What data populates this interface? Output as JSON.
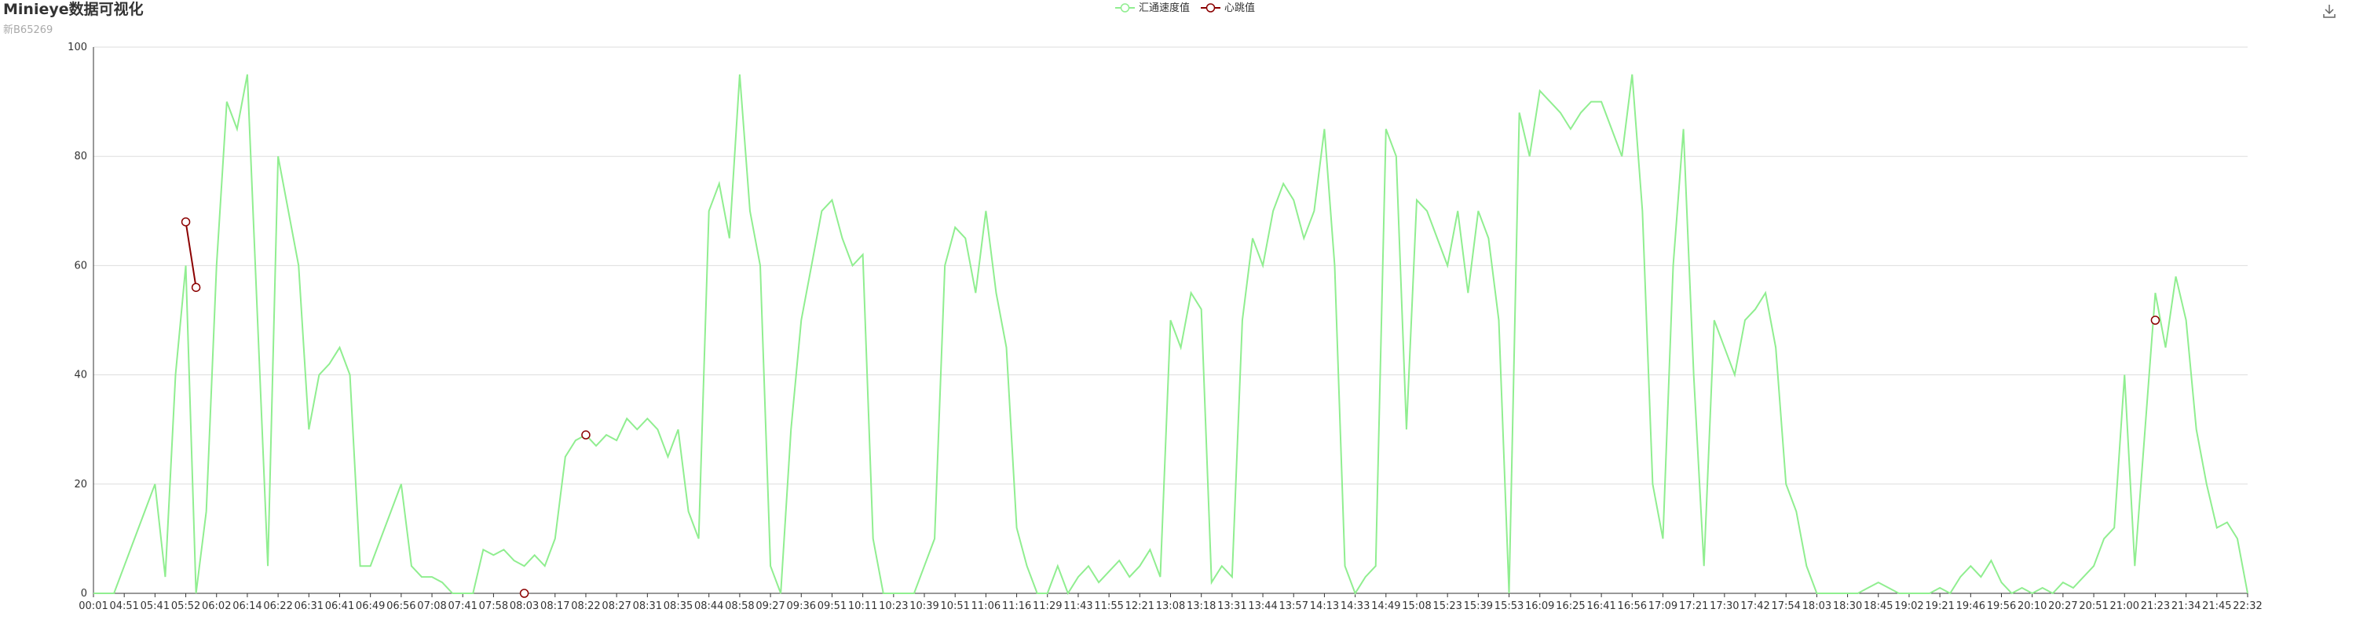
{
  "chart_data": {
    "type": "line",
    "title": "Minieye数据可视化",
    "subtitle": "新B65269",
    "categories": [
      "00:01",
      null,
      null,
      "04:51",
      null,
      null,
      "05:41",
      null,
      null,
      "05:52",
      null,
      null,
      "06:02",
      null,
      null,
      "06:14",
      null,
      null,
      "06:22",
      null,
      null,
      "06:31",
      null,
      null,
      "06:41",
      null,
      null,
      "06:49",
      null,
      null,
      "06:56",
      null,
      null,
      "07:08",
      null,
      null,
      "07:41",
      null,
      null,
      "07:58",
      null,
      null,
      "08:03",
      null,
      null,
      "08:17",
      null,
      null,
      "08:22",
      null,
      null,
      "08:27",
      null,
      null,
      "08:31",
      null,
      null,
      "08:35",
      null,
      null,
      "08:44",
      null,
      null,
      "08:58",
      null,
      null,
      "09:27",
      null,
      null,
      "09:36",
      null,
      null,
      "09:51",
      null,
      null,
      "10:11",
      null,
      null,
      "10:23",
      null,
      null,
      "10:39",
      null,
      null,
      "10:51",
      null,
      null,
      "11:06",
      null,
      null,
      "11:16",
      null,
      null,
      "11:29",
      null,
      null,
      "11:43",
      null,
      null,
      "11:55",
      null,
      null,
      "12:21",
      null,
      null,
      "13:08",
      null,
      null,
      "13:18",
      null,
      null,
      "13:31",
      null,
      null,
      "13:44",
      null,
      null,
      "13:57",
      null,
      null,
      "14:13",
      null,
      null,
      "14:33",
      null,
      null,
      "14:49",
      null,
      null,
      "15:08",
      null,
      null,
      "15:23",
      null,
      null,
      "15:39",
      null,
      null,
      "15:53",
      null,
      null,
      "16:09",
      null,
      null,
      "16:25",
      null,
      null,
      "16:41",
      null,
      null,
      "16:56",
      null,
      null,
      "17:09",
      null,
      null,
      "17:21",
      null,
      null,
      "17:30",
      null,
      null,
      "17:42",
      null,
      null,
      "17:54",
      null,
      null,
      "18:03",
      null,
      null,
      "18:30",
      null,
      null,
      "18:45",
      null,
      null,
      "19:02",
      null,
      null,
      "19:21",
      null,
      null,
      "19:46",
      null,
      null,
      "19:56",
      null,
      null,
      "20:10",
      null,
      null,
      "20:27",
      null,
      null,
      "20:51",
      null,
      null,
      "21:00",
      null,
      null,
      "21:23",
      null,
      null,
      "21:34",
      null,
      null,
      "21:45",
      null,
      null,
      "22:32"
    ],
    "series": [
      {
        "name": "汇通速度值",
        "color": "#90ee90",
        "values": [
          0,
          0,
          0,
          5,
          10,
          15,
          20,
          3,
          40,
          60,
          0,
          15,
          60,
          90,
          85,
          95,
          50,
          5,
          80,
          70,
          60,
          30,
          40,
          42,
          45,
          40,
          5,
          5,
          10,
          15,
          20,
          5,
          3,
          3,
          2,
          0,
          0,
          0,
          8,
          7,
          8,
          6,
          5,
          7,
          5,
          10,
          25,
          28,
          29,
          27,
          29,
          28,
          32,
          30,
          32,
          30,
          25,
          30,
          15,
          10,
          70,
          75,
          65,
          95,
          70,
          60,
          5,
          0,
          30,
          50,
          60,
          70,
          72,
          65,
          60,
          62,
          10,
          0,
          0,
          0,
          0,
          5,
          10,
          60,
          67,
          65,
          55,
          70,
          55,
          45,
          12,
          5,
          0,
          0,
          5,
          0,
          3,
          5,
          2,
          4,
          6,
          3,
          5,
          8,
          3,
          50,
          45,
          55,
          52,
          2,
          5,
          3,
          50,
          65,
          60,
          70,
          75,
          72,
          65,
          70,
          85,
          60,
          5,
          0,
          3,
          5,
          85,
          80,
          30,
          72,
          70,
          65,
          60,
          70,
          55,
          70,
          65,
          50,
          0,
          88,
          80,
          92,
          90,
          88,
          85,
          88,
          90,
          90,
          85,
          80,
          95,
          70,
          20,
          10,
          60,
          85,
          40,
          5,
          50,
          45,
          40,
          50,
          52,
          55,
          45,
          20,
          15,
          5,
          0,
          0,
          0,
          0,
          0,
          1,
          2,
          1,
          0,
          0,
          0,
          0,
          1,
          0,
          3,
          5,
          3,
          6,
          2,
          0,
          1,
          0,
          1,
          0,
          2,
          1,
          3,
          5,
          10,
          12,
          40,
          5,
          30,
          55,
          45,
          58,
          50,
          30,
          20,
          12,
          13,
          10,
          0
        ]
      },
      {
        "name": "心跳值",
        "color": "#8b0000",
        "values": [
          null,
          null,
          null,
          null,
          null,
          null,
          null,
          null,
          null,
          68,
          56,
          null,
          null,
          null,
          null,
          null,
          null,
          null,
          null,
          null,
          null,
          null,
          null,
          null,
          null,
          null,
          null,
          null,
          null,
          null,
          null,
          null,
          null,
          null,
          null,
          null,
          null,
          null,
          null,
          null,
          null,
          null,
          0,
          null,
          null,
          null,
          null,
          null,
          29,
          null,
          null,
          null,
          null,
          null,
          null,
          null,
          null,
          null,
          null,
          null,
          null,
          null,
          null,
          null,
          null,
          null,
          null,
          null,
          null,
          null,
          null,
          null,
          null,
          null,
          null,
          null,
          null,
          null,
          null,
          null,
          null,
          null,
          null,
          null,
          null,
          null,
          null,
          null,
          null,
          null,
          null,
          null,
          null,
          null,
          null,
          null,
          null,
          null,
          null,
          null,
          null,
          null,
          null,
          null,
          null,
          null,
          null,
          null,
          null,
          null,
          null,
          null,
          null,
          null,
          null,
          null,
          null,
          null,
          null,
          null,
          null,
          null,
          null,
          null,
          null,
          null,
          null,
          null,
          null,
          null,
          null,
          null,
          null,
          null,
          null,
          null,
          null,
          null,
          null,
          null,
          null,
          null,
          null,
          null,
          null,
          null,
          null,
          null,
          null,
          null,
          null,
          null,
          null,
          null,
          null,
          null,
          null,
          null,
          null,
          null,
          null,
          null,
          null,
          null,
          null,
          null,
          null,
          null,
          null,
          null,
          null,
          null,
          null,
          null,
          null,
          null,
          null,
          null,
          null,
          null,
          null,
          null,
          null,
          null,
          null,
          null,
          null,
          null,
          null,
          null,
          null,
          null,
          null,
          null,
          null,
          null,
          null,
          null,
          null,
          null,
          null,
          50,
          null,
          null,
          null,
          null,
          null,
          null,
          null,
          null,
          null
        ]
      }
    ],
    "ylim": [
      0,
      100
    ],
    "yticks": [
      0,
      20,
      40,
      60,
      80,
      100
    ],
    "grid": true
  }
}
